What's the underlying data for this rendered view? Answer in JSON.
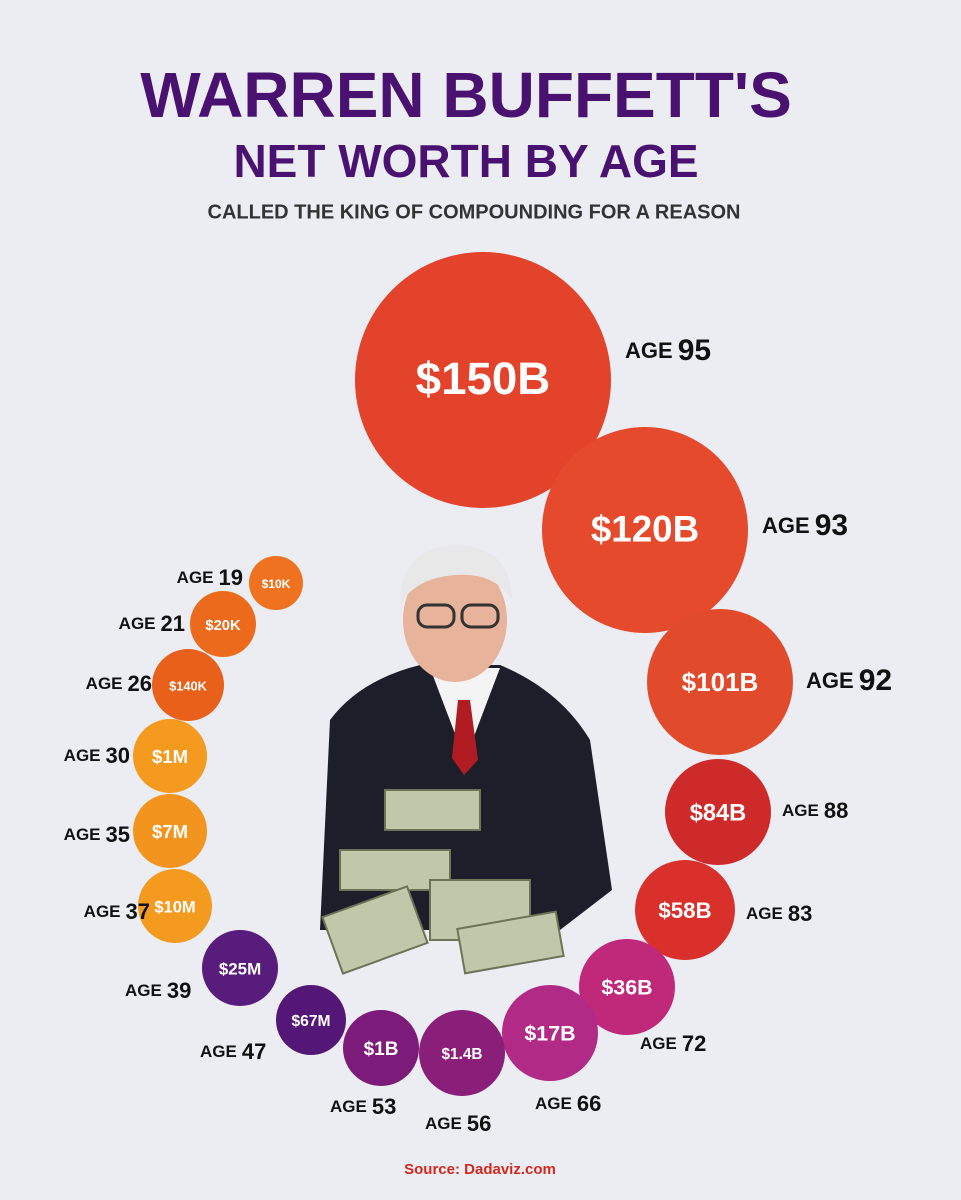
{
  "header": {
    "title_line1": "WARREN BUFFETT'S",
    "title_line2": "NET WORTH BY AGE",
    "subtitle": "CALLED THE KING OF COMPOUNDING FOR A REASON"
  },
  "age_word": "AGE",
  "items": [
    {
      "age": "95",
      "worth": "$150B"
    },
    {
      "age": "93",
      "worth": "$120B"
    },
    {
      "age": "92",
      "worth": "$101B"
    },
    {
      "age": "88",
      "worth": "$84B"
    },
    {
      "age": "83",
      "worth": "$58B"
    },
    {
      "age": "72",
      "worth": "$36B"
    },
    {
      "age": "66",
      "worth": "$17B"
    },
    {
      "age": "56",
      "worth": "$1.4B"
    },
    {
      "age": "53",
      "worth": "$1B"
    },
    {
      "age": "47",
      "worth": "$67M"
    },
    {
      "age": "39",
      "worth": "$25M"
    },
    {
      "age": "37",
      "worth": "$10M"
    },
    {
      "age": "35",
      "worth": "$7M"
    },
    {
      "age": "30",
      "worth": "$1M"
    },
    {
      "age": "26",
      "worth": "$140K"
    },
    {
      "age": "21",
      "worth": "$20K"
    },
    {
      "age": "19",
      "worth": "$10K"
    }
  ],
  "source": "Source: Dadaviz.com"
}
